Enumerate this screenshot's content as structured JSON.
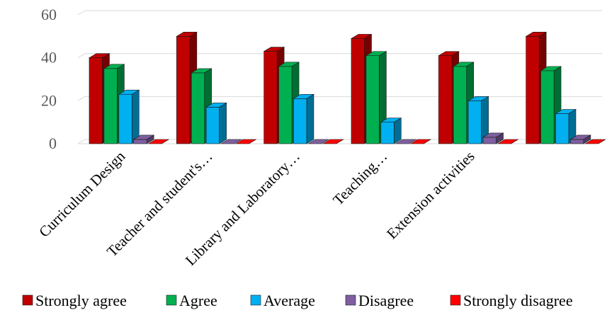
{
  "chart_data": {
    "type": "bar",
    "style": "3d-clustered-column",
    "categories": [
      "Curriculum Design",
      "Teacher and student's…",
      "Library and Laboratory…",
      "Teaching…",
      "Extension activities",
      ""
    ],
    "series": [
      {
        "name": "Strongly agree",
        "color": "#C00000",
        "values": [
          40,
          50,
          43,
          49,
          41,
          50
        ]
      },
      {
        "name": "Agree",
        "color": "#00B050",
        "values": [
          35,
          33,
          36,
          41,
          36,
          34
        ]
      },
      {
        "name": "Average",
        "color": "#00B0F0",
        "values": [
          23,
          17,
          21,
          10,
          20,
          14
        ]
      },
      {
        "name": "Disagree",
        "color": "#7F5FA0",
        "values": [
          2,
          0,
          0,
          0,
          3,
          2
        ]
      },
      {
        "name": "Strongly disagree",
        "color": "#FF0000",
        "values": [
          0,
          0,
          0,
          0,
          0,
          0
        ]
      }
    ],
    "yticks": [
      0,
      20,
      40,
      60
    ],
    "ylim": [
      0,
      60
    ],
    "grid": true,
    "legend_position": "bottom"
  }
}
